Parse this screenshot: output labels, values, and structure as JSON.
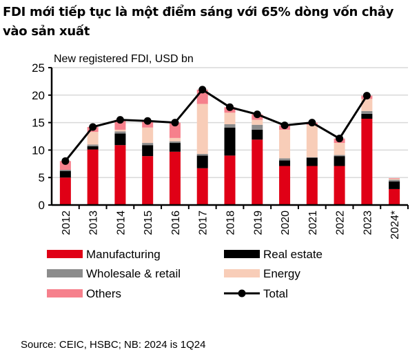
{
  "title": "FDI mới tiếp tục là một điểm sáng với 65% dòng vốn chảy vào sản xuất",
  "source": "Source: CEIC, HSBC; NB: 2024 is 1Q24",
  "chart_data": {
    "type": "bar",
    "stacked": true,
    "title": "New registered  FDI, USD bn",
    "xlabel": "",
    "ylabel": "",
    "ylim": [
      0,
      25
    ],
    "yticks": [
      0,
      5,
      10,
      15,
      20,
      25
    ],
    "grid": true,
    "legend_position": "bottom",
    "categories": [
      "2012",
      "2013",
      "2014",
      "2015",
      "2016",
      "2017",
      "2018",
      "2019",
      "2020",
      "2021",
      "2022",
      "2023",
      "2024*"
    ],
    "series": [
      {
        "name": "Manufacturing",
        "color": "#e00016",
        "values": [
          5.0,
          10.1,
          10.9,
          8.9,
          9.7,
          6.7,
          9.0,
          11.9,
          7.1,
          7.1,
          7.1,
          15.7,
          2.9
        ]
      },
      {
        "name": "Real estate",
        "color": "#000000",
        "values": [
          1.2,
          0.6,
          2.1,
          2.0,
          1.6,
          2.3,
          5.1,
          1.8,
          1.0,
          1.5,
          1.8,
          0.9,
          1.4
        ]
      },
      {
        "name": "Wholesale & retail",
        "color": "#8c8c8c",
        "values": [
          0.2,
          0.3,
          0.4,
          0.4,
          0.3,
          0.3,
          0.6,
          0.9,
          0.4,
          0.1,
          0.2,
          0.5,
          0.3
        ]
      },
      {
        "name": "Energy",
        "color": "#f8cdb8",
        "values": [
          0.0,
          2.3,
          0.3,
          2.8,
          0.6,
          9.1,
          2.1,
          0.9,
          5.2,
          5.9,
          2.2,
          2.2,
          0.2
        ]
      },
      {
        "name": "Others",
        "color": "#f6808c",
        "values": [
          1.6,
          0.9,
          1.8,
          1.2,
          2.8,
          2.6,
          1.0,
          1.0,
          0.8,
          0.4,
          0.8,
          0.6,
          0.1
        ]
      }
    ],
    "line": {
      "name": "Total",
      "color": "#000000",
      "values": [
        8.0,
        14.2,
        15.5,
        15.3,
        15.0,
        21.0,
        17.8,
        16.5,
        14.5,
        15.0,
        12.1,
        19.9,
        null
      ]
    }
  }
}
